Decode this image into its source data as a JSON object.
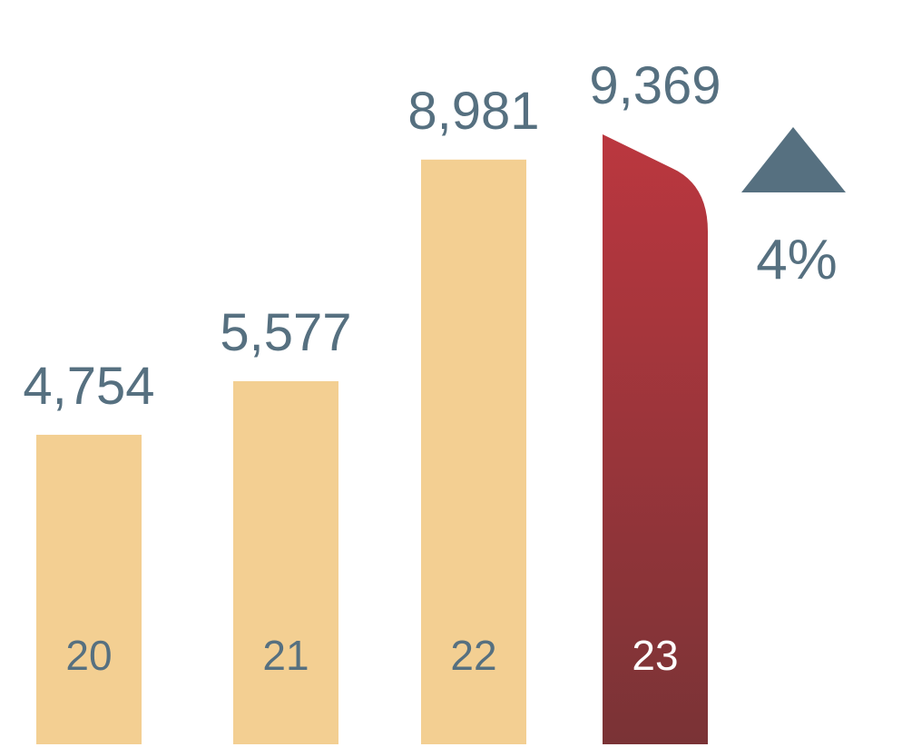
{
  "chart_data": {
    "type": "bar",
    "categories": [
      "20",
      "21",
      "22",
      "23"
    ],
    "values": [
      4754,
      5577,
      8981,
      9369
    ],
    "value_labels": [
      "4,754",
      "5,577",
      "8,981",
      "9,369"
    ],
    "color": "#f3cf92",
    "highlight_gradient": [
      "#bb373f",
      "#7a3336"
    ],
    "annotation": "4%"
  }
}
